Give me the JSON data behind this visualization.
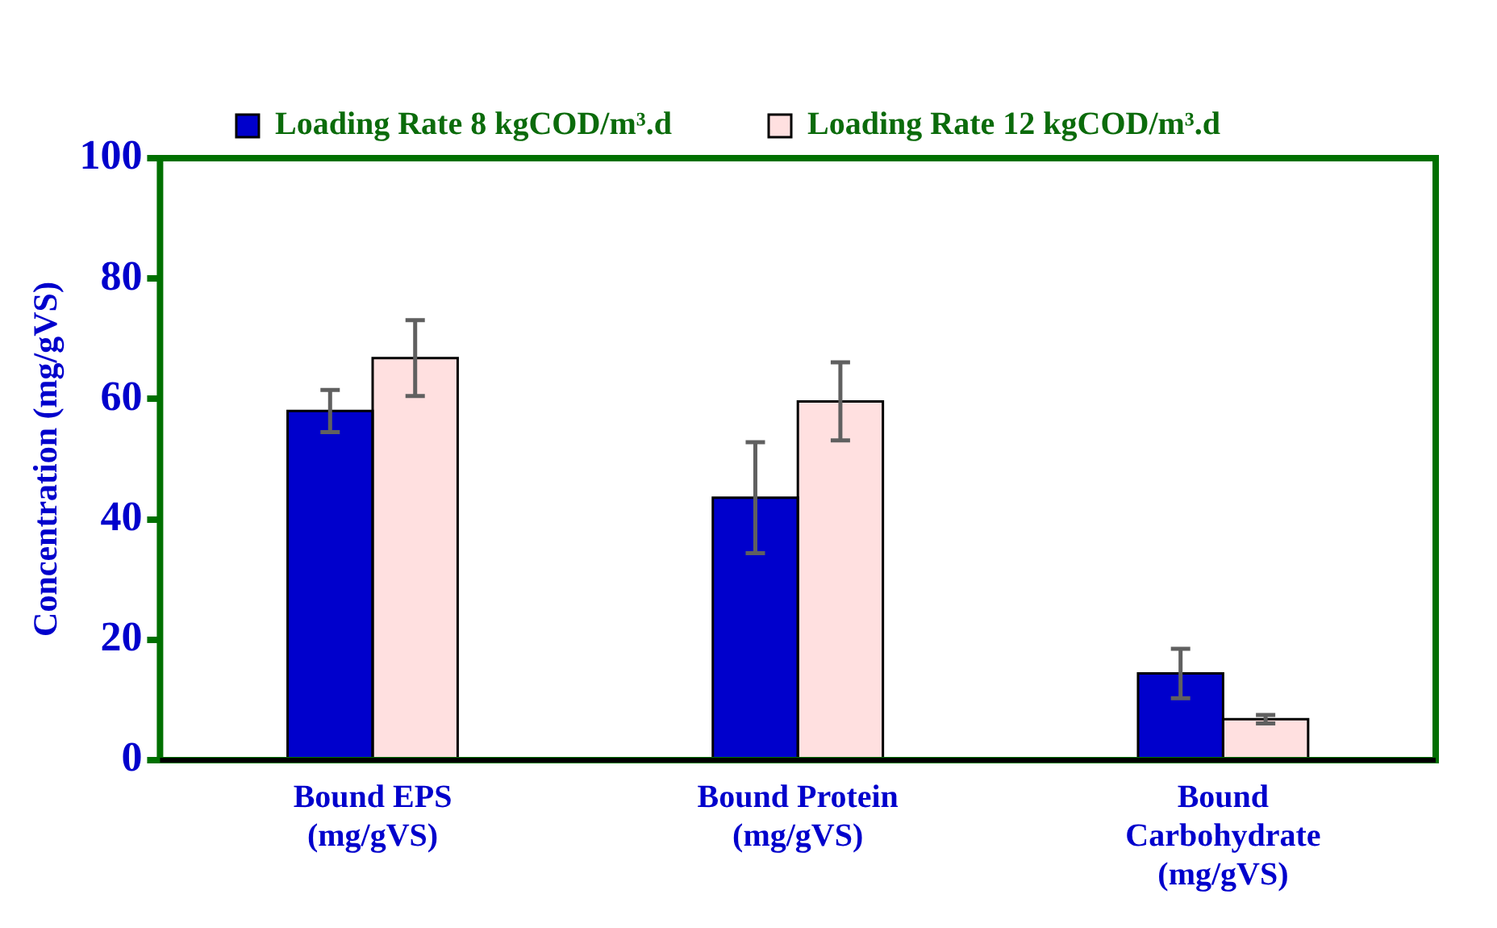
{
  "chart_data": {
    "type": "bar",
    "categories": [
      "Bound EPS (mg/gVS)",
      "Bound Protein (mg/gVS)",
      "Bound Carbohydrate (mg/gVS)"
    ],
    "ylabel": "Concentration (mg/gVS)",
    "series": [
      {
        "name": "Loading Rate 8 kgCOD/m³.d",
        "color": "#0000cc",
        "values": [
          58,
          43.6,
          14.4
        ],
        "errors": [
          3.5,
          9.2,
          4.1
        ]
      },
      {
        "name": "Loading Rate 12 kgCOD/m³.d",
        "color": "#ffe0e0",
        "values": [
          66.8,
          59.6,
          6.8
        ],
        "errors": [
          6.3,
          6.5,
          0.7
        ]
      }
    ],
    "ylim": [
      0,
      100
    ],
    "yticks": [
      0,
      20,
      40,
      60,
      80,
      100
    ],
    "grid": false,
    "legend": "top"
  }
}
